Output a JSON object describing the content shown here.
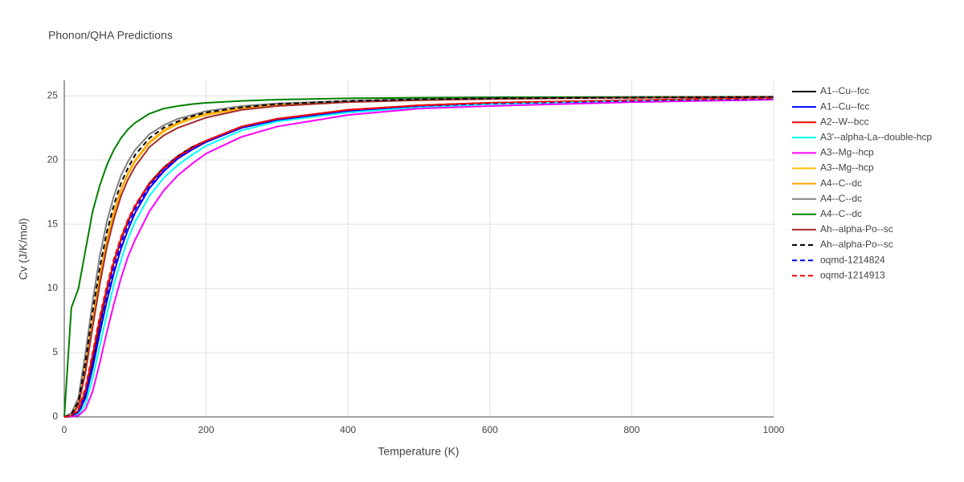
{
  "chart_data": {
    "type": "line",
    "title": "Phonon/QHA Predictions",
    "x_label": "Temperature (K)",
    "y_label": "Cv (J/K/mol)",
    "x": [
      0,
      10,
      20,
      30,
      40,
      50,
      60,
      70,
      80,
      90,
      100,
      120,
      140,
      160,
      180,
      200,
      250,
      300,
      400,
      500,
      600,
      800,
      1000
    ],
    "xlim": [
      0,
      1000
    ],
    "xticks": [
      0,
      200,
      400,
      600,
      800,
      1000
    ],
    "ylim": [
      0,
      26.2
    ],
    "yticks": [
      0,
      5,
      10,
      15,
      20,
      25
    ],
    "grid": true,
    "legend": "right",
    "series": [
      {
        "name": "A1--Cu--fcc",
        "color": "#000000",
        "dash": false,
        "values": [
          0,
          0.05,
          0.4,
          1.8,
          4.3,
          7.2,
          9.8,
          12,
          13.8,
          15.2,
          16.4,
          18.2,
          19.4,
          20.3,
          21,
          21.5,
          22.6,
          23.2,
          23.9,
          24.25,
          24.45,
          24.65,
          24.8
        ]
      },
      {
        "name": "A1--Cu--fcc",
        "color": "#0000ff",
        "dash": false,
        "values": [
          0,
          0.05,
          0.3,
          1.5,
          3.8,
          6.5,
          9,
          11.2,
          13.1,
          14.6,
          15.9,
          17.8,
          19.1,
          20.1,
          20.8,
          21.4,
          22.5,
          23.1,
          23.8,
          24.2,
          24.4,
          24.6,
          24.75
        ]
      },
      {
        "name": "A2--W--bcc",
        "color": "#ff0000",
        "dash": false,
        "values": [
          0,
          0.1,
          0.5,
          2.1,
          4.8,
          7.6,
          10,
          12.1,
          13.9,
          15.3,
          16.4,
          18.1,
          19.3,
          20.2,
          20.9,
          21.5,
          22.6,
          23.2,
          23.9,
          24.25,
          24.45,
          24.65,
          24.8
        ]
      },
      {
        "name": "A3'--alpha-La--double-hcp",
        "color": "#00ffff",
        "dash": false,
        "values": [
          0,
          0.03,
          0.2,
          1,
          3,
          5.5,
          8,
          10.3,
          12.2,
          13.9,
          15.2,
          17.2,
          18.6,
          19.6,
          20.4,
          21.1,
          22.3,
          23,
          23.7,
          24.1,
          24.35,
          24.6,
          24.75
        ]
      },
      {
        "name": "A3--Mg--hcp",
        "color": "#ff00ff",
        "dash": false,
        "values": [
          0,
          0.02,
          0.1,
          0.6,
          2,
          4.2,
          6.6,
          8.8,
          10.8,
          12.5,
          13.8,
          16,
          17.6,
          18.8,
          19.7,
          20.5,
          21.8,
          22.6,
          23.5,
          24,
          24.2,
          24.5,
          24.7
        ]
      },
      {
        "name": "A3--Mg--hcp",
        "color": "#ffc000",
        "dash": false,
        "values": [
          0,
          0.1,
          1,
          3.8,
          7.5,
          10.8,
          13.6,
          15.8,
          17.6,
          18.9,
          19.9,
          21.3,
          22.2,
          22.8,
          23.2,
          23.5,
          24,
          24.3,
          24.55,
          24.7,
          24.78,
          24.85,
          24.9
        ]
      },
      {
        "name": "A4--C--dc",
        "color": "#ffa500",
        "dash": false,
        "values": [
          0,
          0.1,
          1.1,
          4,
          7.7,
          11,
          13.8,
          16,
          17.7,
          19,
          20,
          21.4,
          22.3,
          22.9,
          23.3,
          23.6,
          24.05,
          24.3,
          24.55,
          24.7,
          24.78,
          24.85,
          24.9
        ]
      },
      {
        "name": "A4--C--dc",
        "color": "#808080",
        "dash": false,
        "values": [
          0,
          0.3,
          1.5,
          5,
          9,
          12.5,
          15.2,
          17.2,
          18.8,
          19.9,
          20.8,
          22,
          22.7,
          23.2,
          23.5,
          23.8,
          24.2,
          24.4,
          24.6,
          24.75,
          24.8,
          24.85,
          24.9
        ]
      },
      {
        "name": "A4--C--dc",
        "color": "#008000",
        "dash": false,
        "values": [
          0,
          8.5,
          10,
          13,
          16,
          18,
          19.6,
          20.8,
          21.7,
          22.4,
          22.9,
          23.6,
          24,
          24.2,
          24.35,
          24.45,
          24.6,
          24.7,
          24.8,
          24.85,
          24.88,
          24.9,
          24.92
        ]
      },
      {
        "name": "Ah--alpha-Po--sc",
        "color": "#a52a2a",
        "dash": false,
        "values": [
          0,
          0.1,
          0.9,
          3.5,
          7,
          10.3,
          13.2,
          15.4,
          17.2,
          18.5,
          19.5,
          21,
          21.9,
          22.5,
          22.9,
          23.3,
          23.9,
          24.2,
          24.5,
          24.65,
          24.75,
          24.85,
          24.9
        ]
      },
      {
        "name": "Ah--alpha-Po--sc",
        "color": "#000000",
        "dash": true,
        "values": [
          0,
          0.2,
          1.2,
          4.3,
          8.2,
          11.6,
          14.4,
          16.5,
          18.2,
          19.4,
          20.4,
          21.7,
          22.5,
          23,
          23.4,
          23.7,
          24.1,
          24.35,
          24.6,
          24.72,
          24.8,
          24.85,
          24.9
        ]
      },
      {
        "name": "oqmd-1214824",
        "color": "#0000ff",
        "dash": true,
        "values": [
          0,
          0.06,
          0.4,
          1.7,
          4.1,
          6.9,
          9.5,
          11.7,
          13.5,
          15,
          16.2,
          18,
          19.3,
          20.2,
          20.9,
          21.5,
          22.6,
          23.2,
          23.85,
          24.2,
          24.4,
          24.6,
          24.75
        ]
      },
      {
        "name": "oqmd-1214913",
        "color": "#ff0000",
        "dash": true,
        "values": [
          0,
          0.1,
          0.6,
          2.3,
          5,
          7.8,
          10.2,
          12.3,
          14,
          15.4,
          16.5,
          18.2,
          19.4,
          20.3,
          21,
          21.5,
          22.6,
          23.2,
          23.9,
          24.25,
          24.45,
          24.65,
          24.8
        ]
      }
    ]
  }
}
